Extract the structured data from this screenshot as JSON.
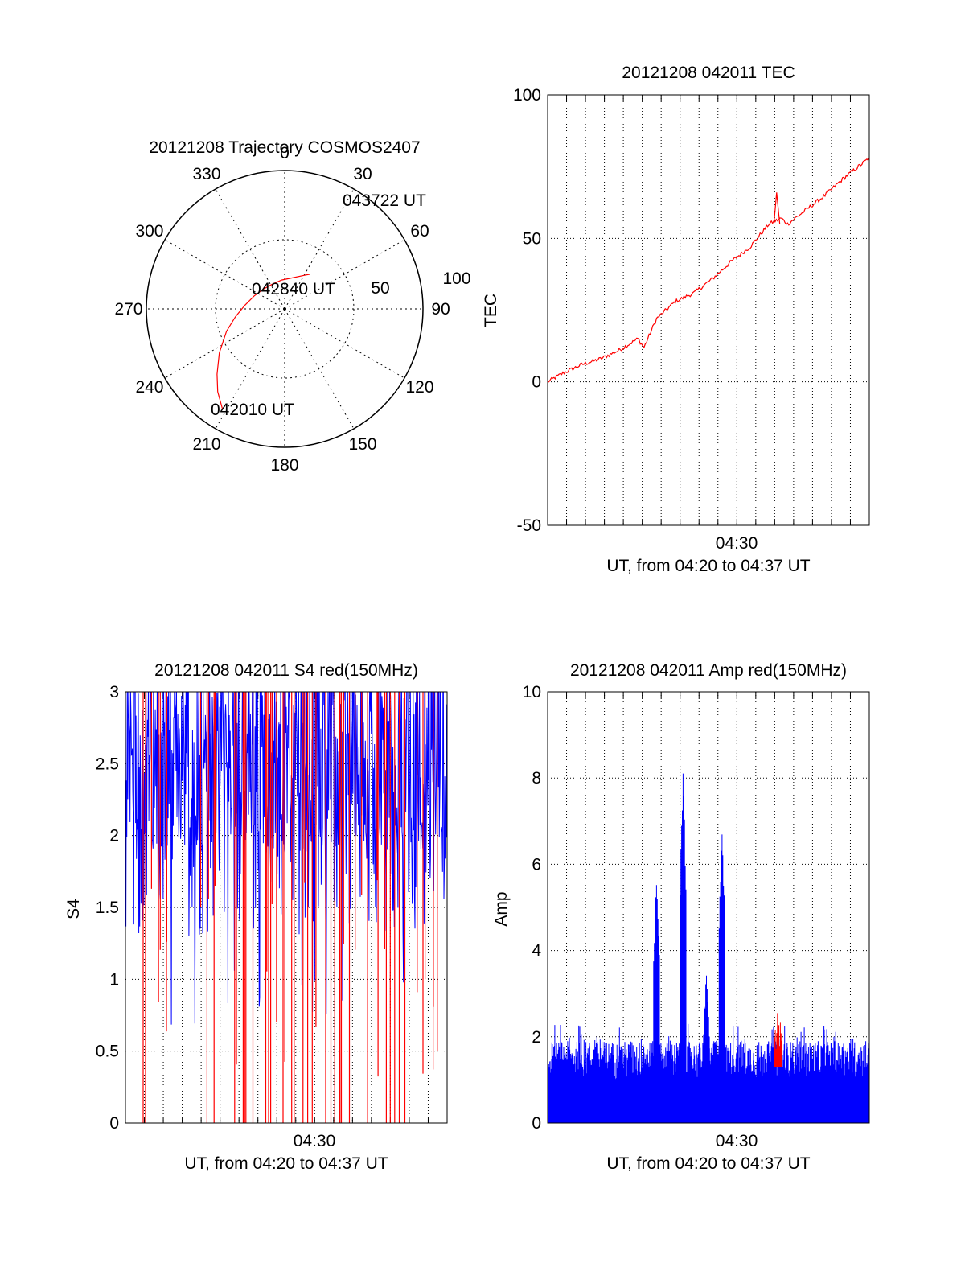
{
  "colors": {
    "red": "#ff0000",
    "blue": "#0000ff",
    "axis": "#000000"
  },
  "chart_data": [
    {
      "type": "polar",
      "title": "20121208 Trajectory COSMOS2407",
      "angle_labels": [
        "0",
        "30",
        "60",
        "90",
        "120",
        "150",
        "180",
        "210",
        "240",
        "270",
        "300",
        "330"
      ],
      "radius_labels": [
        "50",
        "100"
      ],
      "rlim": [
        0,
        100
      ],
      "trajectory": [
        [
          212,
          85
        ],
        [
          219,
          77
        ],
        [
          226,
          68
        ],
        [
          236,
          57
        ],
        [
          249,
          45
        ],
        [
          261,
          36
        ],
        [
          275,
          29
        ],
        [
          293,
          24
        ],
        [
          313,
          21
        ],
        [
          333,
          20
        ],
        [
          354,
          21
        ],
        [
          13,
          23
        ],
        [
          30,
          28
        ],
        [
          36,
          31
        ]
      ],
      "annotations": [
        {
          "text": "043722 UT"
        },
        {
          "text": "042840 UT"
        },
        {
          "text": "042010 UT"
        }
      ]
    },
    {
      "type": "line",
      "title": "20121208 042011 TEC",
      "ylabel": "TEC",
      "xlabel": "UT, from 04:20 to 04:37 UT",
      "xlim": [
        "04:20:11",
        "04:37:22"
      ],
      "ylim": [
        -50,
        100
      ],
      "ytick_labels": [
        "100",
        "50",
        "0",
        "-50"
      ],
      "xtick_labels": [
        "04:30"
      ],
      "grid": true,
      "series": [
        {
          "color": "red",
          "x": [
            "04:20:11",
            "04:21:00",
            "04:22:00",
            "04:23:00",
            "04:24:00",
            "04:25:00",
            "04:25:20",
            "04:26:00",
            "04:27:00",
            "04:28:00",
            "04:29:00",
            "04:30:00",
            "04:31:00",
            "04:32:00",
            "04:32:40",
            "04:33:00",
            "04:34:00",
            "04:35:00",
            "04:36:00",
            "04:37:22"
          ],
          "values": [
            0,
            3,
            6,
            8,
            11,
            15,
            12,
            22,
            28,
            31,
            36,
            42,
            47,
            55,
            57,
            55,
            60,
            65,
            71,
            78
          ]
        }
      ]
    },
    {
      "type": "line",
      "title": "20121208 042011 S4 red(150MHz)",
      "ylabel": "S4",
      "xlabel": "UT, from 04:20 to 04:37 UT",
      "xlim": [
        "04:20:11",
        "04:37:22"
      ],
      "ylim": [
        0,
        3
      ],
      "ytick_labels": [
        "3",
        "2.5",
        "2",
        "1.5",
        "1",
        "0.5",
        "0"
      ],
      "xtick_labels": [
        "04:30"
      ],
      "grid": true,
      "series": [
        {
          "color": "blue",
          "description_range": [
            0.5,
            3.0
          ]
        },
        {
          "color": "red",
          "description_range": [
            0,
            3.0
          ]
        }
      ]
    },
    {
      "type": "line",
      "title": "20121208 042011 Amp red(150MHz)",
      "ylabel": "Amp",
      "xlabel": "UT, from 04:20 to 04:37 UT",
      "xlim": [
        "04:20:11",
        "04:37:22"
      ],
      "ylim": [
        0,
        10
      ],
      "ytick_labels": [
        "10",
        "8",
        "6",
        "4",
        "2",
        "0"
      ],
      "xtick_labels": [
        "04:30"
      ],
      "grid": true,
      "series": [
        {
          "color": "blue",
          "peaks": [
            {
              "time": "04:26:00",
              "value": 5.9
            },
            {
              "time": "04:27:25",
              "value": 8.4
            },
            {
              "time": "04:28:40",
              "value": 3.6
            },
            {
              "time": "04:29:30",
              "value": 7.1
            }
          ]
        },
        {
          "color": "red",
          "peaks": [
            {
              "time": "04:32:30",
              "value": 2.6
            }
          ]
        }
      ]
    }
  ]
}
